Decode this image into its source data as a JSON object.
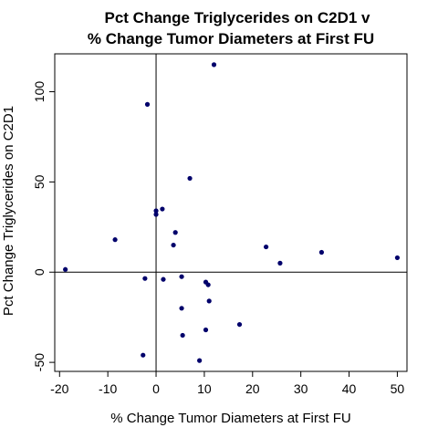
{
  "chart_data": {
    "type": "scatter",
    "title_lines": [
      "Pct Change Triglycerides on C2D1 v",
      "% Change Tumor Diameters at First FU"
    ],
    "xlabel": "% Change Tumor Diameters at First FU",
    "ylabel": "Pct Change Triglycerides on C2D1",
    "xlim": [
      -21,
      52
    ],
    "ylim": [
      -55,
      121
    ],
    "x_ticks": [
      -20,
      -10,
      0,
      10,
      20,
      30,
      40,
      50
    ],
    "y_ticks": [
      -50,
      0,
      50,
      100
    ],
    "x_tick_labels": [
      "-20",
      "-10",
      "0",
      "10",
      "20",
      "30",
      "40",
      "50"
    ],
    "y_tick_labels": [
      "-50",
      "0",
      "50",
      "100"
    ],
    "reference_lines": {
      "x": 0,
      "y": 0
    },
    "point_color": "#00006b",
    "points": [
      {
        "x": 12.0,
        "y": 115
      },
      {
        "x": -1.8,
        "y": 93
      },
      {
        "x": 7.0,
        "y": 52
      },
      {
        "x": 1.3,
        "y": 35
      },
      {
        "x": 0.0,
        "y": 34
      },
      {
        "x": 0.0,
        "y": 32
      },
      {
        "x": 4.0,
        "y": 22
      },
      {
        "x": 3.6,
        "y": 15
      },
      {
        "x": -8.5,
        "y": 18
      },
      {
        "x": 22.8,
        "y": 14
      },
      {
        "x": 34.3,
        "y": 11
      },
      {
        "x": 25.7,
        "y": 5
      },
      {
        "x": 50.0,
        "y": 8
      },
      {
        "x": -18.8,
        "y": 1.5
      },
      {
        "x": -2.3,
        "y": -3.5
      },
      {
        "x": 1.5,
        "y": -4
      },
      {
        "x": 5.3,
        "y": -2.5
      },
      {
        "x": 10.3,
        "y": -5.5
      },
      {
        "x": 10.8,
        "y": -7
      },
      {
        "x": 11.0,
        "y": -16
      },
      {
        "x": 5.3,
        "y": -20
      },
      {
        "x": 17.3,
        "y": -29
      },
      {
        "x": 10.3,
        "y": -32
      },
      {
        "x": 5.5,
        "y": -35
      },
      {
        "x": -2.7,
        "y": -46
      },
      {
        "x": 9.0,
        "y": -49
      }
    ]
  }
}
